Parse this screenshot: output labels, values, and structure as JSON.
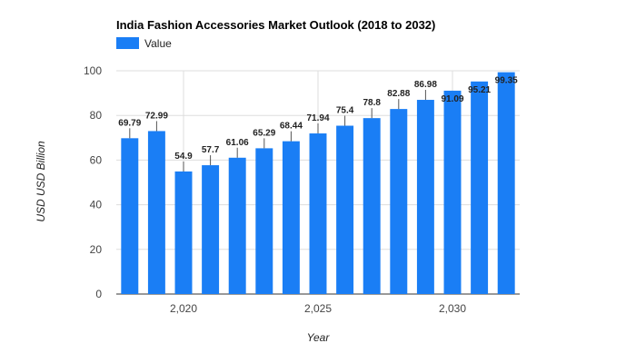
{
  "chart_data": {
    "type": "bar",
    "title": "India Fashion Accessories Market Outlook (2018 to 2032)",
    "xlabel": "Year",
    "ylabel": "USD USD Billion",
    "legend": {
      "position": "top-left",
      "entries": [
        "Value"
      ]
    },
    "categories": [
      2018,
      2019,
      2020,
      2021,
      2022,
      2023,
      2024,
      2025,
      2026,
      2027,
      2028,
      2029,
      2030,
      2031,
      2032
    ],
    "series": [
      {
        "name": "Value",
        "color": "#1a7ef5",
        "values": [
          69.79,
          72.99,
          54.9,
          57.7,
          61.06,
          65.29,
          68.44,
          71.94,
          75.4,
          78.8,
          82.88,
          86.98,
          91.09,
          95.21,
          99.35
        ]
      }
    ],
    "data_labels": [
      "69.79",
      "72.99",
      "54.9",
      "57.7",
      "61.06",
      "65.29",
      "68.44",
      "71.94",
      "75.4",
      "78.8",
      "82.88",
      "86.98",
      "91.09",
      "95.21",
      "99.35"
    ],
    "x_ticks": [
      {
        "value": 2020,
        "label": "2,020"
      },
      {
        "value": 2025,
        "label": "2,025"
      },
      {
        "value": 2030,
        "label": "2,030"
      }
    ],
    "y_ticks": [
      0,
      20,
      40,
      60,
      80,
      100
    ],
    "ylim": [
      0,
      100
    ],
    "grid": true
  }
}
